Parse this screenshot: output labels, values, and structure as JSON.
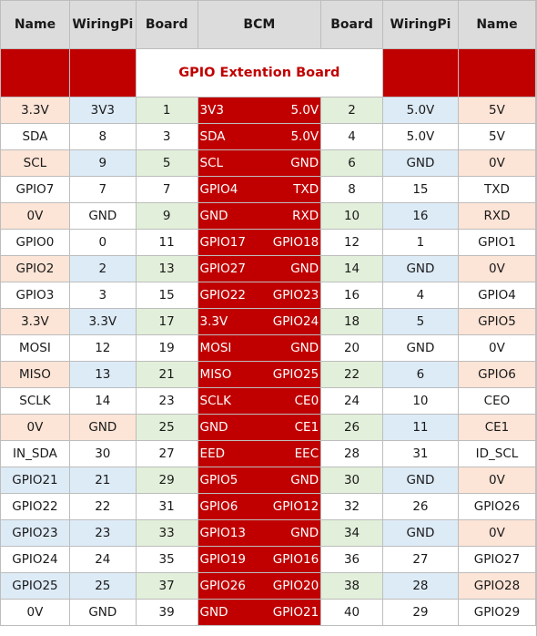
{
  "header": {
    "name_left": "Name",
    "wiringpi_left": "WiringPi",
    "board_left": "Board",
    "bcm": "BCM",
    "board_right": "Board",
    "wiringpi_right": "WiringPi",
    "name_right": "Name"
  },
  "title": "GPIO Extention Board",
  "colors": {
    "red": "#c00000",
    "board_green": "#e2efda",
    "wiringpi_blue": "#ddebf7",
    "name_peach": "#fce4d6",
    "header_gray": "#dcdcdc"
  },
  "rows": [
    {
      "ln": "3.3V",
      "lw": "3V3",
      "lb": "1",
      "bl": "3V3",
      "br": "5.0V",
      "rb": "2",
      "rw": "5.0V",
      "rn": "5V"
    },
    {
      "ln": "SDA",
      "lw": "8",
      "lb": "3",
      "bl": "SDA",
      "br": "5.0V",
      "rb": "4",
      "rw": "5.0V",
      "rn": "5V"
    },
    {
      "ln": "SCL",
      "lw": "9",
      "lb": "5",
      "bl": "SCL",
      "br": "GND",
      "rb": "6",
      "rw": "GND",
      "rn": "0V"
    },
    {
      "ln": "GPIO7",
      "lw": "7",
      "lb": "7",
      "bl": "GPIO4",
      "br": "TXD",
      "rb": "8",
      "rw": "15",
      "rn": "TXD"
    },
    {
      "ln": "0V",
      "lw": "GND",
      "lb": "9",
      "bl": "GND",
      "br": "RXD",
      "rb": "10",
      "rw": "16",
      "rn": "RXD"
    },
    {
      "ln": "GPIO0",
      "lw": "0",
      "lb": "11",
      "bl": "GPIO17",
      "br": "GPIO18",
      "rb": "12",
      "rw": "1",
      "rn": "GPIO1"
    },
    {
      "ln": "GPIO2",
      "lw": "2",
      "lb": "13",
      "bl": "GPIO27",
      "br": "GND",
      "rb": "14",
      "rw": "GND",
      "rn": "0V"
    },
    {
      "ln": "GPIO3",
      "lw": "3",
      "lb": "15",
      "bl": "GPIO22",
      "br": "GPIO23",
      "rb": "16",
      "rw": "4",
      "rn": "GPIO4"
    },
    {
      "ln": "3.3V",
      "lw": "3.3V",
      "lb": "17",
      "bl": "3.3V",
      "br": "GPIO24",
      "rb": "18",
      "rw": "5",
      "rn": "GPIO5"
    },
    {
      "ln": "MOSI",
      "lw": "12",
      "lb": "19",
      "bl": "MOSI",
      "br": "GND",
      "rb": "20",
      "rw": "GND",
      "rn": "0V"
    },
    {
      "ln": "MISO",
      "lw": "13",
      "lb": "21",
      "bl": "MISO",
      "br": "GPIO25",
      "rb": "22",
      "rw": "6",
      "rn": "GPIO6"
    },
    {
      "ln": "SCLK",
      "lw": "14",
      "lb": "23",
      "bl": "SCLK",
      "br": "CE0",
      "rb": "24",
      "rw": "10",
      "rn": "CEO"
    },
    {
      "ln": "0V",
      "lw": "GND",
      "lb": "25",
      "bl": "GND",
      "br": "CE1",
      "rb": "26",
      "rw": "11",
      "rn": "CE1"
    },
    {
      "ln": "IN_SDA",
      "lw": "30",
      "lb": "27",
      "bl": "EED",
      "br": "EEC",
      "rb": "28",
      "rw": "31",
      "rn": "ID_SCL"
    },
    {
      "ln": "GPIO21",
      "lw": "21",
      "lb": "29",
      "bl": "GPIO5",
      "br": "GND",
      "rb": "30",
      "rw": "GND",
      "rn": "0V"
    },
    {
      "ln": "GPIO22",
      "lw": "22",
      "lb": "31",
      "bl": "GPIO6",
      "br": "GPIO12",
      "rb": "32",
      "rw": "26",
      "rn": "GPIO26"
    },
    {
      "ln": "GPIO23",
      "lw": "23",
      "lb": "33",
      "bl": "GPIO13",
      "br": "GND",
      "rb": "34",
      "rw": "GND",
      "rn": "0V"
    },
    {
      "ln": "GPIO24",
      "lw": "24",
      "lb": "35",
      "bl": "GPIO19",
      "br": "GPIO16",
      "rb": "36",
      "rw": "27",
      "rn": "GPIO27"
    },
    {
      "ln": "GPIO25",
      "lw": "25",
      "lb": "37",
      "bl": "GPIO26",
      "br": "GPIO20",
      "rb": "38",
      "rw": "28",
      "rn": "GPIO28"
    },
    {
      "ln": "0V",
      "lw": "GND",
      "lb": "39",
      "bl": "GND",
      "br": "GPIO21",
      "rb": "40",
      "rw": "29",
      "rn": "GPIO29"
    }
  ]
}
